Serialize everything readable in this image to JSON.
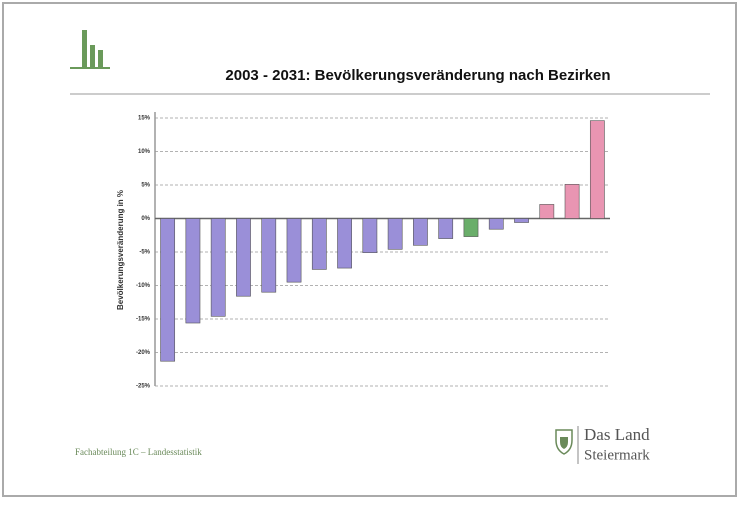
{
  "chart_data": {
    "type": "bar",
    "title": "2003 - 2031: Bevölkerungsveränderung nach Bezirken",
    "y_label": "Bevölkerungsveränderung in %",
    "footer": "Fachabteilung 1C – Landesstatistik",
    "logo_line1": "Das Land",
    "logo_line2": "Steiermark",
    "categories": [
      null,
      null,
      null,
      null,
      null,
      null,
      null,
      null,
      null,
      null,
      null,
      null,
      null,
      null,
      null,
      null,
      null,
      null
    ],
    "values": [
      -21.3,
      -15.6,
      -14.6,
      -11.6,
      -11.0,
      -9.5,
      -7.6,
      -7.4,
      -5.1,
      -4.6,
      -4.0,
      -3.0,
      -2.7,
      -1.6,
      -0.6,
      2.1,
      5.1,
      14.6
    ],
    "colors": [
      "#9a8fd8",
      "#9a8fd8",
      "#9a8fd8",
      "#9a8fd8",
      "#9a8fd8",
      "#9a8fd8",
      "#9a8fd8",
      "#9a8fd8",
      "#9a8fd8",
      "#9a8fd8",
      "#9a8fd8",
      "#9a8fd8",
      "#6aae6a",
      "#9a8fd8",
      "#9a8fd8",
      "#e995b2",
      "#e995b2",
      "#e995b2"
    ],
    "ylim": [
      -25,
      15
    ],
    "yticks": [
      {
        "value": -25,
        "label": "-25%"
      },
      {
        "value": -20,
        "label": "-20%"
      },
      {
        "value": -15,
        "label": "-15%"
      },
      {
        "value": -10,
        "label": "-10%"
      },
      {
        "value": -5,
        "label": "-5%"
      },
      {
        "value": 0,
        "label": "0%"
      },
      {
        "value": 5,
        "label": "5%"
      },
      {
        "value": 10,
        "label": "10%"
      },
      {
        "value": 15,
        "label": "15%"
      }
    ],
    "grid": true
  }
}
